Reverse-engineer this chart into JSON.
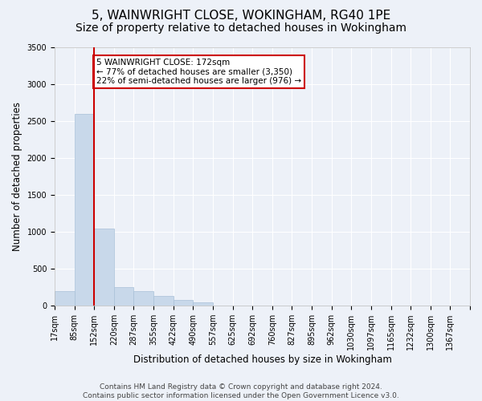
{
  "title": "5, WAINWRIGHT CLOSE, WOKINGHAM, RG40 1PE",
  "subtitle": "Size of property relative to detached houses in Wokingham",
  "xlabel": "Distribution of detached houses by size in Wokingham",
  "ylabel": "Number of detached properties",
  "bar_values": [
    200,
    2600,
    1050,
    250,
    200,
    130,
    80,
    50,
    0,
    0,
    0,
    0,
    0,
    0,
    0,
    0,
    0,
    0,
    0,
    0,
    0
  ],
  "bar_labels": [
    "17sqm",
    "85sqm",
    "152sqm",
    "220sqm",
    "287sqm",
    "355sqm",
    "422sqm",
    "490sqm",
    "557sqm",
    "625sqm",
    "692sqm",
    "760sqm",
    "827sqm",
    "895sqm",
    "962sqm",
    "1030sqm",
    "1097sqm",
    "1165sqm",
    "1232sqm",
    "1300sqm",
    "1367sqm"
  ],
  "bar_color": "#c8d8ea",
  "bar_edge_color": "#a8c0d8",
  "property_line_x": 2.0,
  "property_line_color": "#cc0000",
  "annotation_text": "5 WAINWRIGHT CLOSE: 172sqm\n← 77% of detached houses are smaller (3,350)\n22% of semi-detached houses are larger (976) →",
  "annotation_box_color": "#ffffff",
  "annotation_box_edge_color": "#cc0000",
  "ylim": [
    0,
    3500
  ],
  "yticks": [
    0,
    500,
    1000,
    1500,
    2000,
    2500,
    3000,
    3500
  ],
  "background_color": "#edf1f8",
  "plot_background_color": "#edf1f8",
  "grid_color": "#ffffff",
  "footer_text": "Contains HM Land Registry data © Crown copyright and database right 2024.\nContains public sector information licensed under the Open Government Licence v3.0.",
  "title_fontsize": 11,
  "subtitle_fontsize": 10,
  "xlabel_fontsize": 8.5,
  "ylabel_fontsize": 8.5,
  "tick_fontsize": 7,
  "footer_fontsize": 6.5
}
